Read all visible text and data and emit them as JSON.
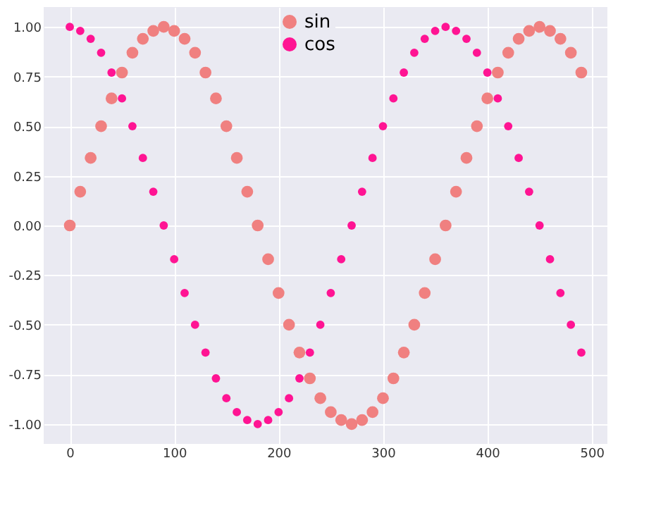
{
  "chart_data": {
    "type": "scatter",
    "x": [
      0,
      10,
      20,
      30,
      40,
      50,
      60,
      70,
      80,
      90,
      100,
      110,
      120,
      130,
      140,
      150,
      160,
      170,
      180,
      190,
      200,
      210,
      220,
      230,
      240,
      250,
      260,
      270,
      280,
      290,
      300,
      310,
      320,
      330,
      340,
      350,
      360,
      370,
      380,
      390,
      400,
      410,
      420,
      430,
      440,
      450,
      460,
      470,
      480,
      490
    ],
    "series": [
      {
        "name": "sin",
        "color": "#f08080",
        "values": [
          0,
          0.17,
          0.34,
          0.5,
          0.64,
          0.77,
          0.87,
          0.94,
          0.98,
          1,
          0.98,
          0.94,
          0.87,
          0.77,
          0.64,
          0.5,
          0.34,
          0.17,
          0,
          -0.17,
          -0.34,
          -0.5,
          -0.64,
          -0.77,
          -0.87,
          -0.94,
          -0.98,
          -1,
          -0.98,
          -0.94,
          -0.87,
          -0.77,
          -0.64,
          -0.5,
          -0.34,
          -0.17,
          0,
          0.17,
          0.34,
          0.5,
          0.64,
          0.77,
          0.87,
          0.94,
          0.98,
          1,
          0.98,
          0.94,
          0.87,
          0.77
        ]
      },
      {
        "name": "cos",
        "color": "#ff1493",
        "values": [
          1,
          0.98,
          0.94,
          0.87,
          0.77,
          0.64,
          0.5,
          0.34,
          0.17,
          0,
          -0.17,
          -0.34,
          -0.5,
          -0.64,
          -0.77,
          -0.87,
          -0.94,
          -0.98,
          -1,
          -0.98,
          -0.94,
          -0.87,
          -0.77,
          -0.64,
          -0.5,
          -0.34,
          -0.17,
          0,
          0.17,
          0.34,
          0.5,
          0.64,
          0.77,
          0.87,
          0.94,
          0.98,
          1,
          0.98,
          0.94,
          0.87,
          0.77,
          0.64,
          0.5,
          0.34,
          0.17,
          0,
          -0.17,
          -0.34,
          -0.5,
          -0.64
        ]
      }
    ],
    "xlim": [
      -25,
      515
    ],
    "xticks": [
      0,
      100,
      200,
      300,
      400,
      500
    ],
    "ylim": [
      -1.1,
      1.1
    ],
    "yticks": [
      {
        "value": -1,
        "label": "-1.00"
      },
      {
        "value": -0.75,
        "label": "-0.75"
      },
      {
        "value": -0.5,
        "label": "-0.50"
      },
      {
        "value": -0.25,
        "label": "-0.25"
      },
      {
        "value": 0,
        "label": "0.00"
      },
      {
        "value": 0.25,
        "label": "0.25"
      },
      {
        "value": 0.5,
        "label": "0.50"
      },
      {
        "value": 0.75,
        "label": "0.75"
      },
      {
        "value": 1,
        "label": "1.00"
      }
    ],
    "grid": true,
    "legend": "top",
    "marker": "circle"
  }
}
